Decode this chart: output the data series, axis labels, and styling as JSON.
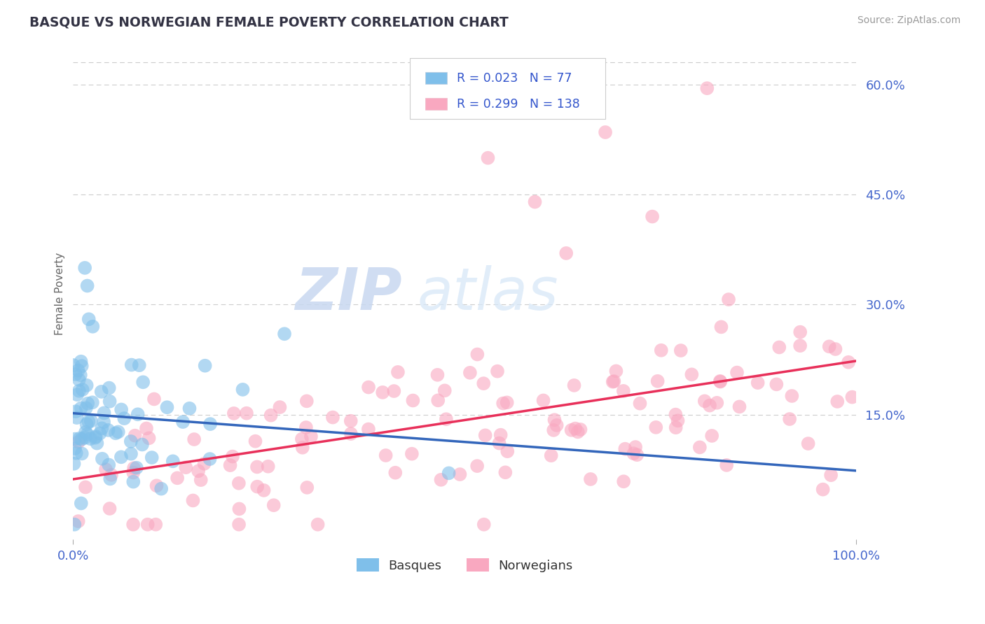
{
  "title": "BASQUE VS NORWEGIAN FEMALE POVERTY CORRELATION CHART",
  "source_text": "Source: ZipAtlas.com",
  "ylabel": "Female Poverty",
  "x_min": 0.0,
  "x_max": 1.0,
  "y_min": -0.02,
  "y_max": 0.65,
  "y_ticks": [
    0.15,
    0.3,
    0.45,
    0.6
  ],
  "y_tick_labels": [
    "15.0%",
    "30.0%",
    "45.0%",
    "60.0%"
  ],
  "x_ticks": [
    0.0,
    1.0
  ],
  "x_tick_labels": [
    "0.0%",
    "100.0%"
  ],
  "basque_color": "#7fbfea",
  "norwegian_color": "#f9a8c0",
  "basque_line_color": "#3366bb",
  "norwegian_line_color": "#e8305a",
  "basque_R": 0.023,
  "basque_N": 77,
  "norwegian_R": 0.299,
  "norwegian_N": 138,
  "legend_text_color": "#3355cc",
  "watermark_zip": "ZIP",
  "watermark_atlas": "atlas",
  "background_color": "#ffffff",
  "grid_color": "#cccccc",
  "title_color": "#333333",
  "axis_label_color": "#666666",
  "tick_label_color": "#4466cc",
  "source_color": "#999999"
}
